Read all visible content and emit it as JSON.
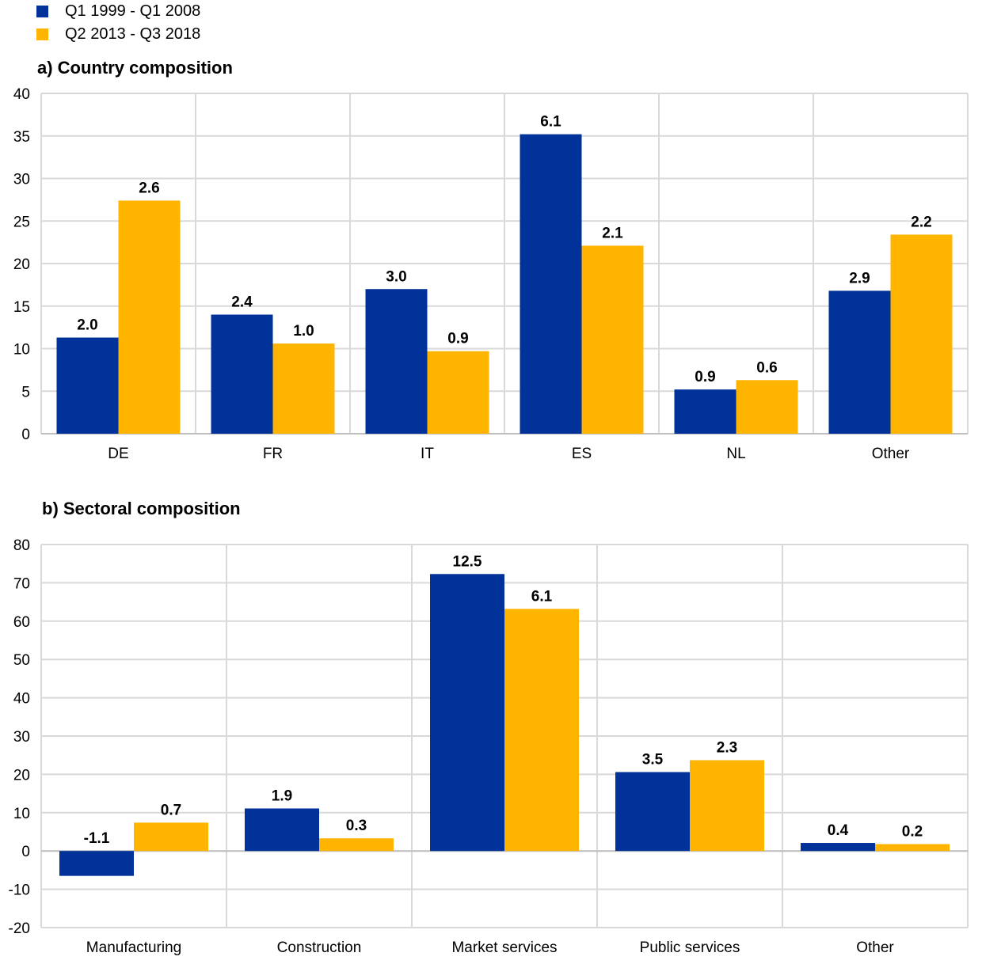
{
  "legend": {
    "items": [
      {
        "label": "Q1 1999 - Q1 2008",
        "color": "#003299"
      },
      {
        "label": "Q2 2013 - Q3 2018",
        "color": "#ffb400"
      }
    ]
  },
  "chart_data": [
    {
      "type": "bar",
      "title": "a) Country composition",
      "categories": [
        "DE",
        "FR",
        "IT",
        "ES",
        "NL",
        "Other"
      ],
      "ylim": [
        0,
        40
      ],
      "yticks": [
        0,
        5,
        10,
        15,
        20,
        25,
        30,
        35,
        40
      ],
      "series": [
        {
          "color": "#003299",
          "values": [
            11.3,
            14.0,
            17.0,
            35.2,
            5.2,
            16.8
          ],
          "labels": [
            "2.0",
            "2.4",
            "3.0",
            "6.1",
            "0.9",
            "2.9"
          ]
        },
        {
          "color": "#ffb400",
          "values": [
            27.4,
            10.6,
            9.7,
            22.1,
            6.3,
            23.4
          ],
          "labels": [
            "2.6",
            "1.0",
            "0.9",
            "2.1",
            "0.6",
            "2.2"
          ]
        }
      ],
      "grid": true
    },
    {
      "type": "bar",
      "title": "b) Sectoral composition",
      "categories": [
        "Manufacturing",
        "Construction",
        "Market services",
        "Public services",
        "Other"
      ],
      "ylim": [
        -20,
        80
      ],
      "yticks": [
        -20,
        -10,
        0,
        10,
        20,
        30,
        40,
        50,
        60,
        70,
        80
      ],
      "series": [
        {
          "color": "#003299",
          "values": [
            -6.5,
            11.1,
            72.3,
            20.6,
            2.1
          ],
          "labels": [
            "-1.1",
            "1.9",
            "12.5",
            "3.5",
            "0.4"
          ]
        },
        {
          "color": "#ffb400",
          "values": [
            7.4,
            3.3,
            63.2,
            23.7,
            1.8
          ],
          "labels": [
            "0.7",
            "0.3",
            "6.1",
            "2.3",
            "0.2"
          ]
        }
      ],
      "grid": true
    }
  ]
}
